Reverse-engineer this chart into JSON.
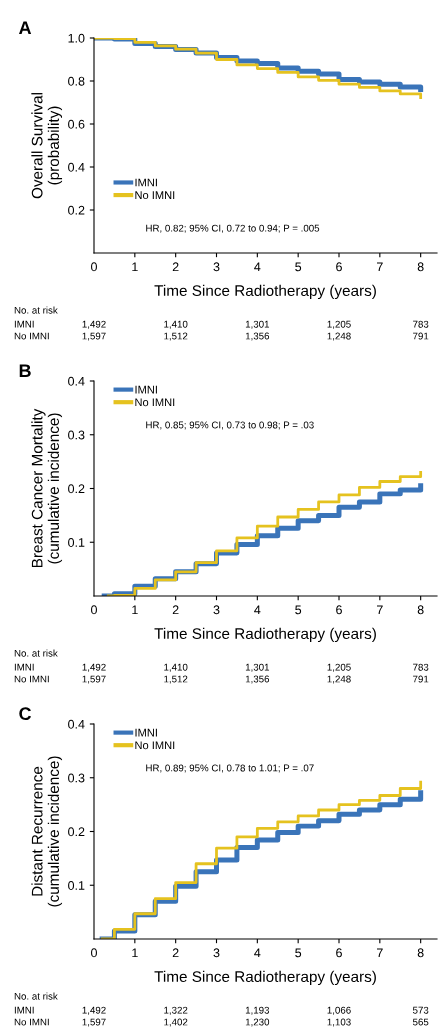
{
  "chart_data": [
    {
      "type": "step",
      "title": "A",
      "ylabel": "Overall Survival\n(probability)",
      "xlabel": "Time Since Radiotherapy (years)",
      "xlim": [
        0,
        8.4
      ],
      "xticks": [
        0,
        1,
        2,
        3,
        4,
        5,
        6,
        7,
        8
      ],
      "ylim": [
        0,
        1.0
      ],
      "yticks": [
        0.2,
        0.4,
        0.6,
        0.8,
        {
          "value": 1.0,
          "label": "1.0"
        }
      ],
      "legend": "bottom left",
      "grid": false,
      "series": [
        {
          "name": "IMNI",
          "color": "#3a74b9",
          "x": [
            0,
            0.5,
            1,
            1.5,
            2,
            2.5,
            3,
            3.5,
            4,
            4.5,
            5,
            5.5,
            6,
            6.5,
            7,
            7.5,
            8
          ],
          "values": [
            1.0,
            0.995,
            0.974,
            0.96,
            0.947,
            0.93,
            0.909,
            0.893,
            0.881,
            0.86,
            0.845,
            0.832,
            0.807,
            0.795,
            0.785,
            0.772,
            0.76
          ]
        },
        {
          "name": "No IMNI",
          "color": "#e5c21f",
          "x": [
            0,
            0.5,
            1,
            1.5,
            2,
            2.5,
            3,
            3.5,
            4,
            4.5,
            5,
            5.5,
            6,
            6.5,
            7,
            7.5,
            8
          ],
          "values": [
            1.0,
            0.997,
            0.98,
            0.963,
            0.948,
            0.93,
            0.9,
            0.875,
            0.858,
            0.84,
            0.819,
            0.803,
            0.785,
            0.77,
            0.754,
            0.74,
            0.723
          ]
        }
      ],
      "annotations": [
        "HR, 0.82; 95% CI, 0.72 to 0.94; P = .005",
        "No. at risk",
        "IMNI",
        "1,492",
        "1,410",
        "1,301",
        "1,205",
        "783",
        "No IMNI",
        "1,597",
        "1,512",
        "1,356",
        "1,248",
        "791"
      ]
    },
    {
      "type": "step",
      "title": "B",
      "ylabel": "Breast Cancer Mortality\n(cumulative incidence)",
      "xlabel": "Time Since Radiotherapy (years)",
      "xlim": [
        0,
        8.4
      ],
      "xticks": [
        0,
        1,
        2,
        3,
        4,
        5,
        6,
        7,
        8
      ],
      "ylim": [
        0,
        0.4
      ],
      "yticks": [
        0.1,
        0.2,
        0.3,
        0.4
      ],
      "legend": "top left",
      "grid": false,
      "series": [
        {
          "name": "IMNI",
          "color": "#3a74b9",
          "x": [
            0.25,
            0.5,
            1,
            1.5,
            2,
            2.5,
            3,
            3.5,
            4,
            4.5,
            5,
            5.5,
            6,
            6.5,
            7,
            7.5,
            8
          ],
          "values": [
            0,
            0.004,
            0.018,
            0.032,
            0.045,
            0.06,
            0.08,
            0.096,
            0.112,
            0.126,
            0.14,
            0.15,
            0.165,
            0.175,
            0.19,
            0.197,
            0.205
          ]
        },
        {
          "name": "No IMNI",
          "color": "#e5c21f",
          "x": [
            0.35,
            0.5,
            1,
            1.5,
            2,
            2.5,
            3,
            3.5,
            4,
            4.5,
            5,
            5.5,
            6,
            6.5,
            7,
            7.5,
            8
          ],
          "values": [
            0,
            0.001,
            0.014,
            0.03,
            0.045,
            0.062,
            0.084,
            0.108,
            0.13,
            0.147,
            0.161,
            0.175,
            0.188,
            0.202,
            0.213,
            0.222,
            0.23
          ]
        }
      ],
      "annotations": [
        "HR, 0.85; 95% CI, 0.73 to 0.98; P = .03",
        "No. at risk",
        "IMNI",
        "1,492",
        "1,410",
        "1,301",
        "1,205",
        "783",
        "No IMNI",
        "1,597",
        "1,512",
        "1,356",
        "1,248",
        "791"
      ]
    },
    {
      "type": "step",
      "title": "C",
      "ylabel": "Distant Recurrence\n(cumulative incidence)",
      "xlabel": "Time Since Radiotherapy (years)",
      "xlim": [
        0,
        8.4
      ],
      "xticks": [
        0,
        1,
        2,
        3,
        4,
        5,
        6,
        7,
        8
      ],
      "ylim": [
        0,
        0.4
      ],
      "yticks": [
        0.1,
        0.2,
        0.3,
        0.4
      ],
      "legend": "top left",
      "grid": false,
      "series": [
        {
          "name": "IMNI",
          "color": "#3a74b9",
          "x": [
            0.2,
            0.5,
            1,
            1.5,
            2,
            2.5,
            3,
            3.5,
            4,
            4.5,
            5,
            5.5,
            6,
            6.5,
            7,
            7.5,
            8
          ],
          "values": [
            0,
            0.015,
            0.045,
            0.07,
            0.098,
            0.125,
            0.147,
            0.17,
            0.184,
            0.198,
            0.21,
            0.22,
            0.232,
            0.24,
            0.25,
            0.26,
            0.272
          ]
        },
        {
          "name": "No IMNI",
          "color": "#e5c21f",
          "x": [
            0.2,
            0.5,
            1,
            1.5,
            2,
            2.5,
            3,
            3.5,
            4,
            4.5,
            5,
            5.5,
            6,
            6.5,
            7,
            7.5,
            8
          ],
          "values": [
            0,
            0.018,
            0.047,
            0.075,
            0.105,
            0.14,
            0.169,
            0.19,
            0.206,
            0.218,
            0.229,
            0.24,
            0.25,
            0.258,
            0.267,
            0.28,
            0.292
          ]
        }
      ],
      "annotations": [
        "HR, 0.89; 95% CI, 0.78 to 1.01; P = .07",
        "No. at risk",
        "IMNI",
        "1,492",
        "1,322",
        "1,193",
        "1,066",
        "573",
        "No IMNI",
        "1,597",
        "1,402",
        "1,230",
        "1,103",
        "565"
      ]
    }
  ]
}
